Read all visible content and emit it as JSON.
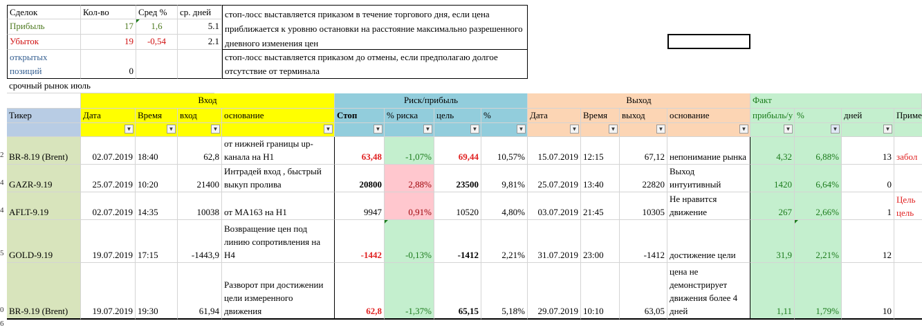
{
  "summary": {
    "headers": [
      "Сделок",
      "Кол-во",
      "Сред %",
      "ср. дней"
    ],
    "rows": [
      {
        "label": "Прибыль",
        "count": "17",
        "avg": "1,6",
        "days": "5.1"
      },
      {
        "label": "Убыток",
        "count": "19",
        "avg": "-0,54",
        "days": "2.1"
      },
      {
        "label": "открытых позиций",
        "count": "0",
        "avg": "",
        "days": ""
      }
    ],
    "note1": "стоп-лосс выставляется приказом в течение торгового дня, если цена приближается к уровню остановки на расстояние максимально разрешенного дневного изменения цен",
    "note2": "стоп-лосс выставляется приказом до отмены, если предполагаю долгое отсутствие от терминала"
  },
  "section_title": "срочный рынок июль",
  "groups": {
    "entry": "Вход",
    "risk": "Риск/прибыль",
    "exit": "Выход",
    "fact": "Факт"
  },
  "columns": {
    "ticker": "Тикер",
    "date": "Дата",
    "time": "Время",
    "entry": "вход",
    "reason": "основание",
    "stop": "Стоп",
    "risk_pct": "% риска",
    "target": "цель",
    "pct": "%",
    "exit_date": "Дата",
    "exit_time": "Время",
    "exit": "выход",
    "exit_reason": "основание",
    "profit": "прибыль/у",
    "fact_pct": "%",
    "days": "дней",
    "note": "Приме"
  },
  "trades": [
    {
      "row": "2",
      "ticker": "BR-8.19 (Brent)",
      "date": "02.07.2019",
      "time": "18:40",
      "entry": "62,8",
      "reason": "от нижней границы up-канала на H1",
      "stop": "63,48",
      "risk_pct": "-1,07%",
      "target": "69,44",
      "pct": "10,57%",
      "exit_date": "15.07.2019",
      "exit_time": "12:15",
      "exit": "67,12",
      "exit_reason": "непонимание рынка",
      "profit": "4,32",
      "fact_pct": "6,88%",
      "days": "13",
      "note": "забол"
    },
    {
      "row": "4",
      "ticker": "GAZR-9.19",
      "date": "25.07.2019",
      "time": "10:20",
      "entry": "21400",
      "reason": "Интрадей вход , быстрый выкуп пролива",
      "stop": "20800",
      "risk_pct": "2,88%",
      "target": "23500",
      "pct": "9,81%",
      "exit_date": "25.07.2019",
      "exit_time": "13:40",
      "exit": "22820",
      "exit_reason": "Выход интуитивный",
      "profit": "1420",
      "fact_pct": "6,64%",
      "days": "0",
      "note": ""
    },
    {
      "row": "4",
      "ticker": "AFLT-9.19",
      "date": "02.07.2019",
      "time": "14:35",
      "entry": "10038",
      "reason": "от MA163 на H1",
      "stop": "9947",
      "risk_pct": "0,91%",
      "target": "10520",
      "pct": "4,80%",
      "exit_date": "03.07.2019",
      "exit_time": "21:45",
      "exit": "10305",
      "exit_reason": "Не нравится движение",
      "profit": "267",
      "fact_pct": "2,66%",
      "days": "1",
      "note": "Цель цель 1"
    },
    {
      "row": "5",
      "ticker": "GOLD-9.19",
      "date": "19.07.2019",
      "time": "17:15",
      "entry": "-1443,9",
      "reason": "Возвращение цен под линию сопротивления на H4",
      "stop": "-1442",
      "risk_pct": "-0,13%",
      "target": "-1412",
      "pct": "2,21%",
      "exit_date": "31.07.2019",
      "exit_time": "23:00",
      "exit": "-1412",
      "exit_reason": "достижение цели",
      "profit": "31,9",
      "fact_pct": "2,21%",
      "days": "12",
      "note": ""
    },
    {
      "row": "0",
      "ticker": "BR-9.19 (Brent)",
      "date": "19.07.2019",
      "time": "19:30",
      "entry": "61,94",
      "reason": "Разворот при достижении цели измеренного движения",
      "stop": "62,8",
      "risk_pct": "-1,37%",
      "target": "65,15",
      "pct": "5,18%",
      "exit_date": "29.07.2019",
      "exit_time": "10:10",
      "exit": "63,05",
      "exit_reason": "цена не демонстрирует движения более 4 дней",
      "profit": "1,11",
      "fact_pct": "1,79%",
      "days": "10",
      "note": ""
    }
  ],
  "last_row": "6",
  "filter_arrow": "▼",
  "filter_active": "▼",
  "colors": {
    "yellow": "#ffff00",
    "blue": "#92cddc",
    "orange": "#fcd5b4",
    "green": "#c4efce",
    "ticker_green": "#d8e4bc",
    "pink": "#ffc7ce",
    "profit_text": "#00a000",
    "loss_text": "#e02020"
  }
}
